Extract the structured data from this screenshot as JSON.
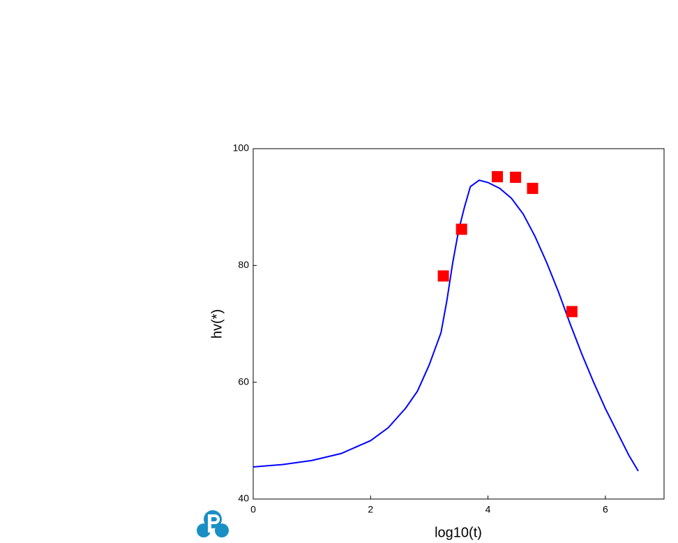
{
  "chart_data": {
    "type": "line",
    "x_label": "log10(t)",
    "y_label": "hv(*)",
    "xlim": [
      0,
      7
    ],
    "ylim": [
      40,
      100
    ],
    "xticks": [
      0,
      2,
      4,
      6
    ],
    "yticks": [
      40,
      60,
      80,
      100
    ],
    "series": [
      {
        "type": "line",
        "color": "#0000ff",
        "x": [
          0,
          0.5,
          1,
          1.5,
          2,
          2.3,
          2.6,
          2.8,
          3,
          3.2,
          3.3,
          3.4,
          3.5,
          3.6,
          3.7,
          3.85,
          4,
          4.2,
          4.4,
          4.6,
          4.8,
          5,
          5.2,
          5.4,
          5.6,
          5.8,
          6,
          6.2,
          6.4,
          6.56
        ],
        "values": [
          45.5,
          45.9,
          46.6,
          47.8,
          50,
          52.2,
          55.6,
          58.5,
          63,
          68.5,
          74,
          80.5,
          86,
          90,
          93.5,
          94.6,
          94.2,
          93.2,
          91.5,
          88.8,
          85,
          80.5,
          75.5,
          70,
          64.8,
          60,
          55.5,
          51.5,
          47.5,
          44.8
        ]
      },
      {
        "type": "scatter",
        "color": "#ff0000",
        "x": [
          3.24,
          3.55,
          4.16,
          4.47,
          4.76,
          5.43
        ],
        "values": [
          78.2,
          86.2,
          95.2,
          95.1,
          93.2,
          72.1
        ]
      }
    ]
  }
}
